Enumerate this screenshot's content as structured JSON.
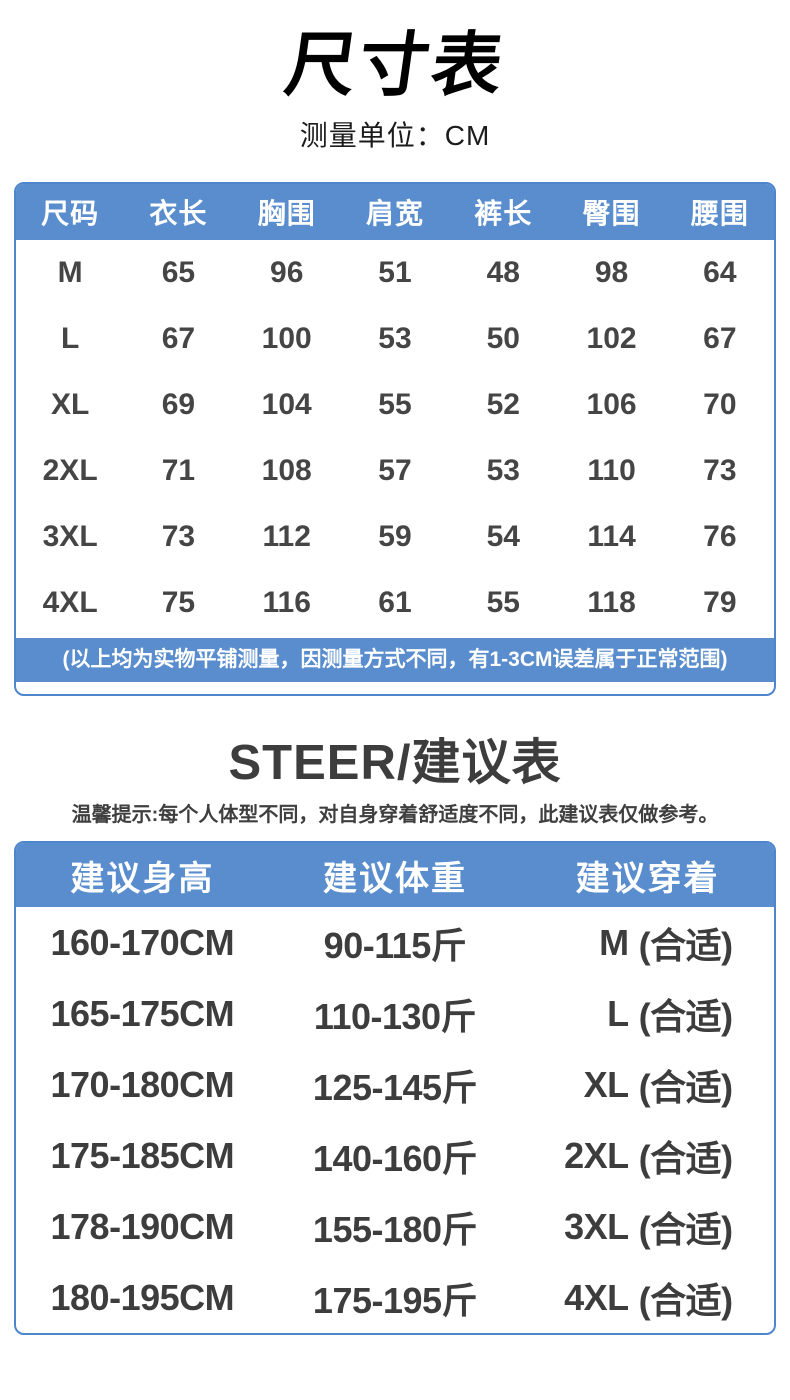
{
  "header": {
    "title": "尺寸表",
    "unit_label": "测量单位：CM"
  },
  "size_table": {
    "columns": [
      "尺码",
      "衣长",
      "胸围",
      "肩宽",
      "裤长",
      "臀围",
      "腰围"
    ],
    "rows": [
      {
        "size": "M",
        "values": [
          "65",
          "96",
          "51",
          "48",
          "98",
          "64"
        ]
      },
      {
        "size": "L",
        "values": [
          "67",
          "100",
          "53",
          "50",
          "102",
          "67"
        ]
      },
      {
        "size": "XL",
        "values": [
          "69",
          "104",
          "55",
          "52",
          "106",
          "70"
        ]
      },
      {
        "size": "2XL",
        "values": [
          "71",
          "108",
          "57",
          "53",
          "110",
          "73"
        ]
      },
      {
        "size": "3XL",
        "values": [
          "73",
          "112",
          "59",
          "54",
          "114",
          "76"
        ]
      },
      {
        "size": "4XL",
        "values": [
          "75",
          "116",
          "61",
          "55",
          "118",
          "79"
        ]
      }
    ],
    "note": "(以上均为实物平铺测量，因测量方式不同，有1-3CM误差属于正常范围)"
  },
  "suggestion": {
    "title": "STEER/建议表",
    "hint": "温馨提示:每个人体型不同，对自身穿着舒适度不同，此建议表仅做参考。",
    "columns": [
      "建议身高",
      "建议体重",
      "建议穿着"
    ],
    "rows": [
      {
        "height": "160-170CM",
        "weight": "90-115斤",
        "size": "M",
        "fit": "(合适)"
      },
      {
        "height": "165-175CM",
        "weight": "110-130斤",
        "size": "L",
        "fit": "(合适)"
      },
      {
        "height": "170-180CM",
        "weight": "125-145斤",
        "size": "XL",
        "fit": "(合适)"
      },
      {
        "height": "175-185CM",
        "weight": "140-160斤",
        "size": "2XL",
        "fit": "(合适)"
      },
      {
        "height": "178-190CM",
        "weight": "155-180斤",
        "size": "3XL",
        "fit": "(合适)"
      },
      {
        "height": "180-195CM",
        "weight": "175-195斤",
        "size": "4XL",
        "fit": "(合适)"
      }
    ]
  },
  "colors": {
    "accent_blue": "#5a8dce",
    "border_blue": "#4e86ce",
    "header_text": "#ffffff",
    "body_text": "#454545"
  }
}
